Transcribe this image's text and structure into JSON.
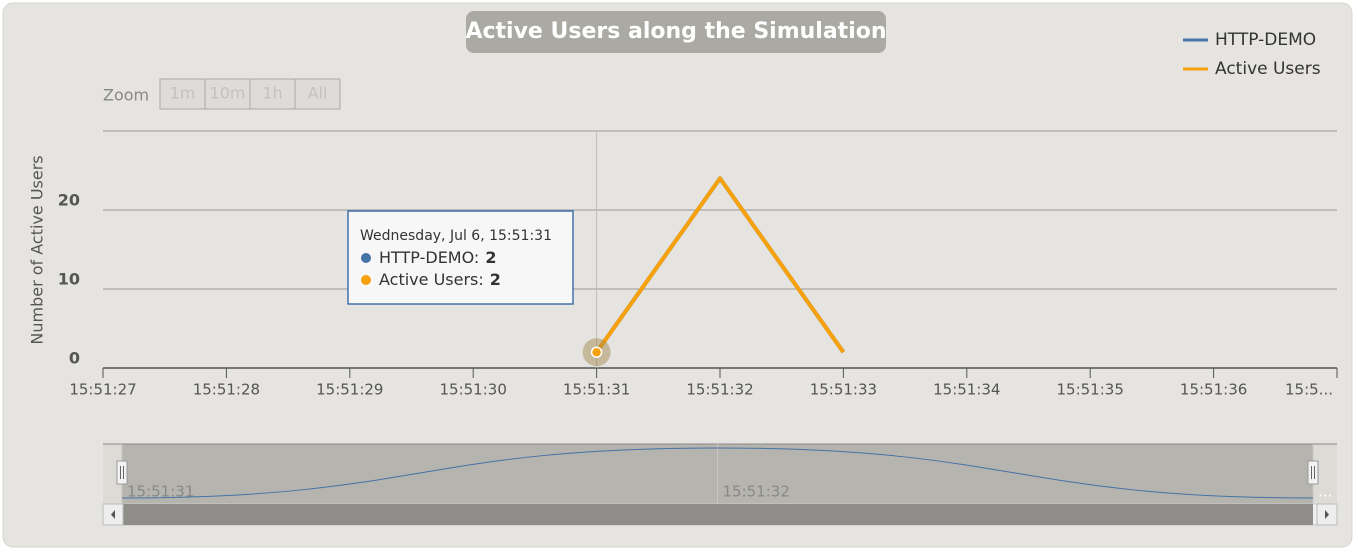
{
  "chart_data": {
    "type": "line",
    "title": "Active Users along the Simulation",
    "y_label": "Number of Active Users",
    "x": [
      "15:51:31",
      "15:51:32",
      "15:51:33"
    ],
    "series": [
      {
        "name": "HTTP-DEMO",
        "color": "#4572a7",
        "values": [
          2,
          24,
          2
        ]
      },
      {
        "name": "Active Users",
        "color": "#f7a20d",
        "values": [
          2,
          24,
          2
        ]
      }
    ],
    "ylim": [
      0,
      30
    ],
    "yticks": [
      0,
      10,
      20
    ],
    "xlim": [
      "15:51:27",
      "15:51:37"
    ],
    "xticks": [
      "15:51:27",
      "15:51:28",
      "15:51:29",
      "15:51:30",
      "15:51:31",
      "15:51:32",
      "15:51:33",
      "15:51:34",
      "15:51:35",
      "15:51:36",
      {
        "value": "15:51:37",
        "label": "15:5..."
      }
    ],
    "grid": true,
    "legend": "top-right",
    "range_selector": {
      "label": "Zoom",
      "buttons": [
        "1m",
        "10m",
        "1h",
        "All"
      ]
    },
    "tooltip": {
      "header": "Wednesday, Jul 6, 15:51:31",
      "separator": ":",
      "index": 0
    },
    "navigator": {
      "xlim": [
        "15:51:31",
        "15:51:33"
      ],
      "ylim": [
        2,
        24
      ],
      "xticks": [
        "15:51:31",
        "15:51:32",
        {
          "value": "15:51:33",
          "label": "..."
        }
      ]
    }
  }
}
